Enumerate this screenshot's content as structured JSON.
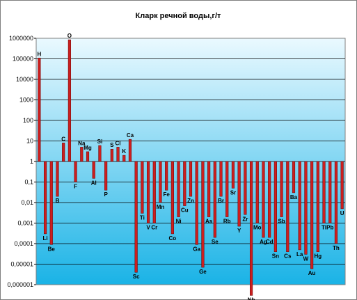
{
  "chart_data": {
    "type": "bar",
    "title": "Кларк речной воды,г/т",
    "xlabel": "",
    "ylabel": "",
    "y_scale": "log",
    "ylim": [
      1e-06,
      1000000
    ],
    "baseline": 1,
    "grid": true,
    "legend": "none",
    "y_tick_labels": [
      "1000000",
      "100000",
      "10000",
      "1000",
      "100",
      "10",
      "1",
      "0,1",
      "0,01",
      "0,001",
      "0,0001",
      "0,00001",
      "0,000001"
    ],
    "categories": [
      "H",
      "Li",
      "Be",
      "B",
      "C",
      "O",
      "F",
      "Na",
      "Mg",
      "Al",
      "Si",
      "P",
      "S",
      "Cl",
      "K",
      "Ca",
      "Sc",
      "Ti",
      "V",
      "Cr",
      "Mn",
      "Fe",
      "Co",
      "Ni",
      "Cu",
      "Zn",
      "Ga",
      "Ge",
      "As",
      "Se",
      "Br",
      "Rb",
      "Sr",
      "Y",
      "Zr",
      "Nb",
      "Mo",
      "Ag",
      "Cd",
      "Sn",
      "Sb",
      "Cs",
      "Ba",
      "La",
      "W",
      "Au",
      "Hg",
      "Tl",
      "Pb",
      "Th",
      "U"
    ],
    "values": [
      110000,
      0.0003,
      9e-05,
      0.02,
      8,
      850000,
      0.1,
      5,
      3,
      0.15,
      6,
      0.04,
      4,
      5,
      2,
      12,
      4e-06,
      0.003,
      0.001,
      0.001,
      0.01,
      0.04,
      0.0003,
      0.002,
      0.007,
      0.02,
      9e-05,
      7e-06,
      0.002,
      0.0002,
      0.02,
      0.002,
      0.05,
      0.0007,
      0.0026,
      3e-07,
      0.001,
      0.0002,
      0.0002,
      4e-05,
      0.002,
      4e-05,
      0.03,
      5e-05,
      3e-05,
      6e-06,
      4e-05,
      0.001,
      0.001,
      0.0001,
      0.005
    ],
    "colors": {
      "bar_fill": "#cc1f1f",
      "bar_edge": "#6b0000",
      "plot_top": "#eaf9ff",
      "plot_bottom": "#1ab3e6",
      "gridline": "#000000"
    }
  }
}
